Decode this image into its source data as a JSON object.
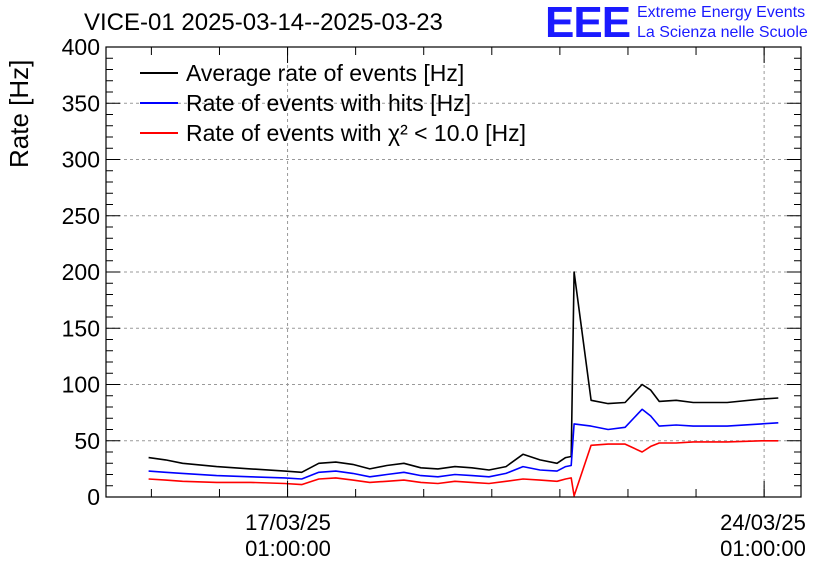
{
  "chart_data": {
    "type": "line",
    "title": "VICE-01 2025-03-14--2025-03-23",
    "ylabel": "Rate [Hz]",
    "xlabel": "",
    "ylim": [
      0,
      400
    ],
    "y_ticks": [
      "0",
      "50",
      "100",
      "150",
      "200",
      "250",
      "300",
      "350",
      "400"
    ],
    "x_ticks": [
      {
        "date": "2025-03-17T01:00:00",
        "label_line1": "17/03/25",
        "label_line2": "01:00:00"
      },
      {
        "date": "2025-03-24T01:00:00",
        "label_line1": "24/03/25",
        "label_line2": "01:00:00"
      }
    ],
    "xlim": [
      "2025-03-14T09:00:00",
      "2025-03-24T14:00:00"
    ],
    "grid": true,
    "legend_position": "top-left",
    "series": [
      {
        "name": "Average rate of events [Hz]",
        "color": "#000000",
        "x": [
          "2025-03-15T00:00:00",
          "2025-03-15T06:00:00",
          "2025-03-15T12:00:00",
          "2025-03-16T00:00:00",
          "2025-03-16T12:00:00",
          "2025-03-17T00:00:00",
          "2025-03-17T06:00:00",
          "2025-03-17T12:00:00",
          "2025-03-17T18:00:00",
          "2025-03-18T00:00:00",
          "2025-03-18T06:00:00",
          "2025-03-18T12:00:00",
          "2025-03-18T18:00:00",
          "2025-03-19T00:00:00",
          "2025-03-19T06:00:00",
          "2025-03-19T12:00:00",
          "2025-03-19T18:00:00",
          "2025-03-20T00:00:00",
          "2025-03-20T06:00:00",
          "2025-03-20T12:00:00",
          "2025-03-20T18:00:00",
          "2025-03-21T00:00:00",
          "2025-03-21T03:00:00",
          "2025-03-21T05:00:00",
          "2025-03-21T06:00:00",
          "2025-03-21T12:00:00",
          "2025-03-21T18:00:00",
          "2025-03-22T00:00:00",
          "2025-03-22T06:00:00",
          "2025-03-22T09:00:00",
          "2025-03-22T12:00:00",
          "2025-03-22T18:00:00",
          "2025-03-23T00:00:00",
          "2025-03-23T12:00:00",
          "2025-03-24T00:00:00",
          "2025-03-24T06:00:00"
        ],
        "y": [
          35,
          33,
          30,
          27,
          25,
          23,
          22,
          30,
          31,
          29,
          25,
          28,
          30,
          26,
          25,
          27,
          26,
          24,
          27,
          38,
          33,
          30,
          35,
          36,
          200,
          86,
          83,
          84,
          100,
          95,
          85,
          86,
          84,
          84,
          87,
          88
        ]
      },
      {
        "name": "Rate of events with hits [Hz]",
        "color": "#0000ff",
        "x": [
          "2025-03-15T00:00:00",
          "2025-03-15T06:00:00",
          "2025-03-15T12:00:00",
          "2025-03-16T00:00:00",
          "2025-03-16T12:00:00",
          "2025-03-17T00:00:00",
          "2025-03-17T06:00:00",
          "2025-03-17T12:00:00",
          "2025-03-17T18:00:00",
          "2025-03-18T00:00:00",
          "2025-03-18T06:00:00",
          "2025-03-18T12:00:00",
          "2025-03-18T18:00:00",
          "2025-03-19T00:00:00",
          "2025-03-19T06:00:00",
          "2025-03-19T12:00:00",
          "2025-03-19T18:00:00",
          "2025-03-20T00:00:00",
          "2025-03-20T06:00:00",
          "2025-03-20T12:00:00",
          "2025-03-20T18:00:00",
          "2025-03-21T00:00:00",
          "2025-03-21T03:00:00",
          "2025-03-21T05:00:00",
          "2025-03-21T06:00:00",
          "2025-03-21T12:00:00",
          "2025-03-21T18:00:00",
          "2025-03-22T00:00:00",
          "2025-03-22T06:00:00",
          "2025-03-22T09:00:00",
          "2025-03-22T12:00:00",
          "2025-03-22T18:00:00",
          "2025-03-23T00:00:00",
          "2025-03-23T12:00:00",
          "2025-03-24T00:00:00",
          "2025-03-24T06:00:00"
        ],
        "y": [
          23,
          22,
          21,
          19,
          18,
          17,
          16,
          22,
          23,
          21,
          18,
          20,
          22,
          19,
          18,
          20,
          19,
          18,
          21,
          27,
          24,
          23,
          27,
          28,
          65,
          63,
          60,
          62,
          78,
          72,
          63,
          64,
          63,
          63,
          65,
          66
        ]
      },
      {
        "name": "Rate of events with χ² < 10.0 [Hz]",
        "color": "#ff0000",
        "x": [
          "2025-03-15T00:00:00",
          "2025-03-15T06:00:00",
          "2025-03-15T12:00:00",
          "2025-03-16T00:00:00",
          "2025-03-16T12:00:00",
          "2025-03-17T00:00:00",
          "2025-03-17T06:00:00",
          "2025-03-17T12:00:00",
          "2025-03-17T18:00:00",
          "2025-03-18T00:00:00",
          "2025-03-18T06:00:00",
          "2025-03-18T12:00:00",
          "2025-03-18T18:00:00",
          "2025-03-19T00:00:00",
          "2025-03-19T06:00:00",
          "2025-03-19T12:00:00",
          "2025-03-19T18:00:00",
          "2025-03-20T00:00:00",
          "2025-03-20T06:00:00",
          "2025-03-20T12:00:00",
          "2025-03-20T18:00:00",
          "2025-03-21T00:00:00",
          "2025-03-21T03:00:00",
          "2025-03-21T05:00:00",
          "2025-03-21T06:00:00",
          "2025-03-21T12:00:00",
          "2025-03-21T18:00:00",
          "2025-03-22T00:00:00",
          "2025-03-22T06:00:00",
          "2025-03-22T09:00:00",
          "2025-03-22T12:00:00",
          "2025-03-22T18:00:00",
          "2025-03-23T00:00:00",
          "2025-03-23T12:00:00",
          "2025-03-24T00:00:00",
          "2025-03-24T06:00:00"
        ],
        "y": [
          16,
          15,
          14,
          13,
          13,
          12,
          11,
          16,
          17,
          15,
          13,
          14,
          15,
          13,
          12,
          14,
          13,
          12,
          14,
          16,
          15,
          14,
          16,
          17,
          1,
          46,
          47,
          47,
          40,
          45,
          48,
          48,
          49,
          49,
          50,
          50
        ]
      }
    ]
  },
  "logo": {
    "mark": "EEE",
    "line1": "Extreme Energy Events",
    "line2": "La Scienza nelle Scuole"
  }
}
